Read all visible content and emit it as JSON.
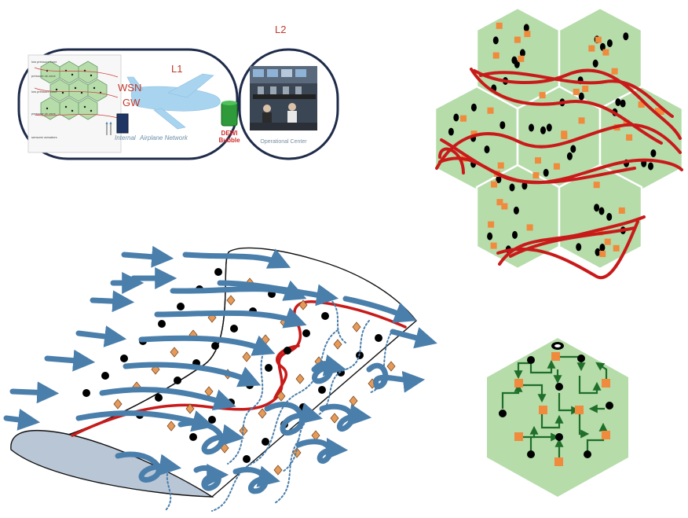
{
  "labels": {
    "l1": "L1",
    "l2": "L2",
    "wsn": "WSN",
    "gw": "GW",
    "dewi_1": "DEWI",
    "dewi_2": "Bubble",
    "airplane_network": "Airplane Network",
    "operational_center": "Operational Center",
    "internal": "Internal",
    "zone_labels": [
      "low pressure zone",
      "pressure ok zone",
      "low pressure zone",
      "pressure ok zone",
      "sensors/ actuators"
    ]
  },
  "colors": {
    "hex_fill": "#b6dcaa",
    "sensor": "#000000",
    "actuator": "#f08a3c",
    "route": "#c91a1a",
    "airflow": "#4a7eab",
    "link": "#1f6e2a",
    "label_red": "#c0392b"
  }
}
